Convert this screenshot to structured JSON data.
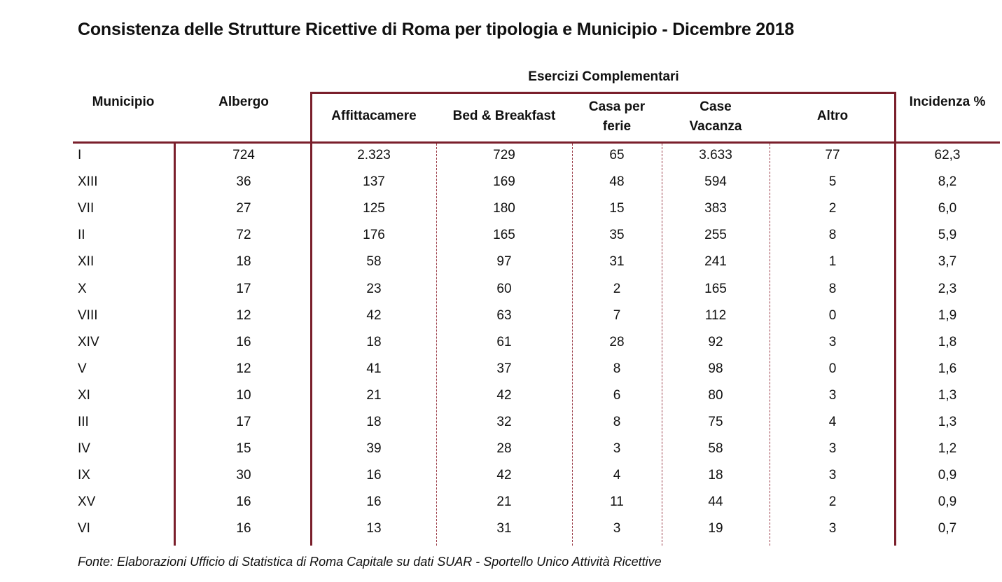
{
  "title": "Consistenza delle Strutture Ricettive di Roma per tipologia e Municipio - Dicembre 2018",
  "headers": {
    "municipio": "Municipio",
    "albergo": "Albergo",
    "group": "Esercizi Complementari",
    "affittacamere": "Affittacamere",
    "bnb": "Bed & Breakfast",
    "casa_ferie_1": "Casa per",
    "casa_ferie_2": "ferie",
    "case_vacanza_1": "Case",
    "case_vacanza_2": "Vacanza",
    "altro": "Altro",
    "incidenza": "Incidenza %"
  },
  "rows": [
    [
      "I",
      "724",
      "2.323",
      "729",
      "65",
      "3.633",
      "77",
      "62,3"
    ],
    [
      "XIII",
      "36",
      "137",
      "169",
      "48",
      "594",
      "5",
      "8,2"
    ],
    [
      "VII",
      "27",
      "125",
      "180",
      "15",
      "383",
      "2",
      "6,0"
    ],
    [
      "II",
      "72",
      "176",
      "165",
      "35",
      "255",
      "8",
      "5,9"
    ],
    [
      "XII",
      "18",
      "58",
      "97",
      "31",
      "241",
      "1",
      "3,7"
    ],
    [
      "X",
      "17",
      "23",
      "60",
      "2",
      "165",
      "8",
      "2,3"
    ],
    [
      "VIII",
      "12",
      "42",
      "63",
      "7",
      "112",
      "0",
      "1,9"
    ],
    [
      "XIV",
      "16",
      "18",
      "61",
      "28",
      "92",
      "3",
      "1,8"
    ],
    [
      "V",
      "12",
      "41",
      "37",
      "8",
      "98",
      "0",
      "1,6"
    ],
    [
      "XI",
      "10",
      "21",
      "42",
      "6",
      "80",
      "3",
      "1,3"
    ],
    [
      "III",
      "17",
      "18",
      "32",
      "8",
      "75",
      "4",
      "1,3"
    ],
    [
      "IV",
      "15",
      "39",
      "28",
      "3",
      "58",
      "3",
      "1,2"
    ],
    [
      "IX",
      "30",
      "16",
      "42",
      "4",
      "18",
      "3",
      "0,9"
    ],
    [
      "XV",
      "16",
      "16",
      "21",
      "11",
      "44",
      "2",
      "0,9"
    ],
    [
      "VI",
      "16",
      "13",
      "31",
      "3",
      "19",
      "3",
      "0,7"
    ]
  ],
  "source": "Fonte: Elaborazioni Ufficio di Statistica di Roma Capitale su dati SUAR - Sportello Unico Attività Ricettive",
  "colors": {
    "rule": "#7a1f2b",
    "text": "#111111"
  }
}
